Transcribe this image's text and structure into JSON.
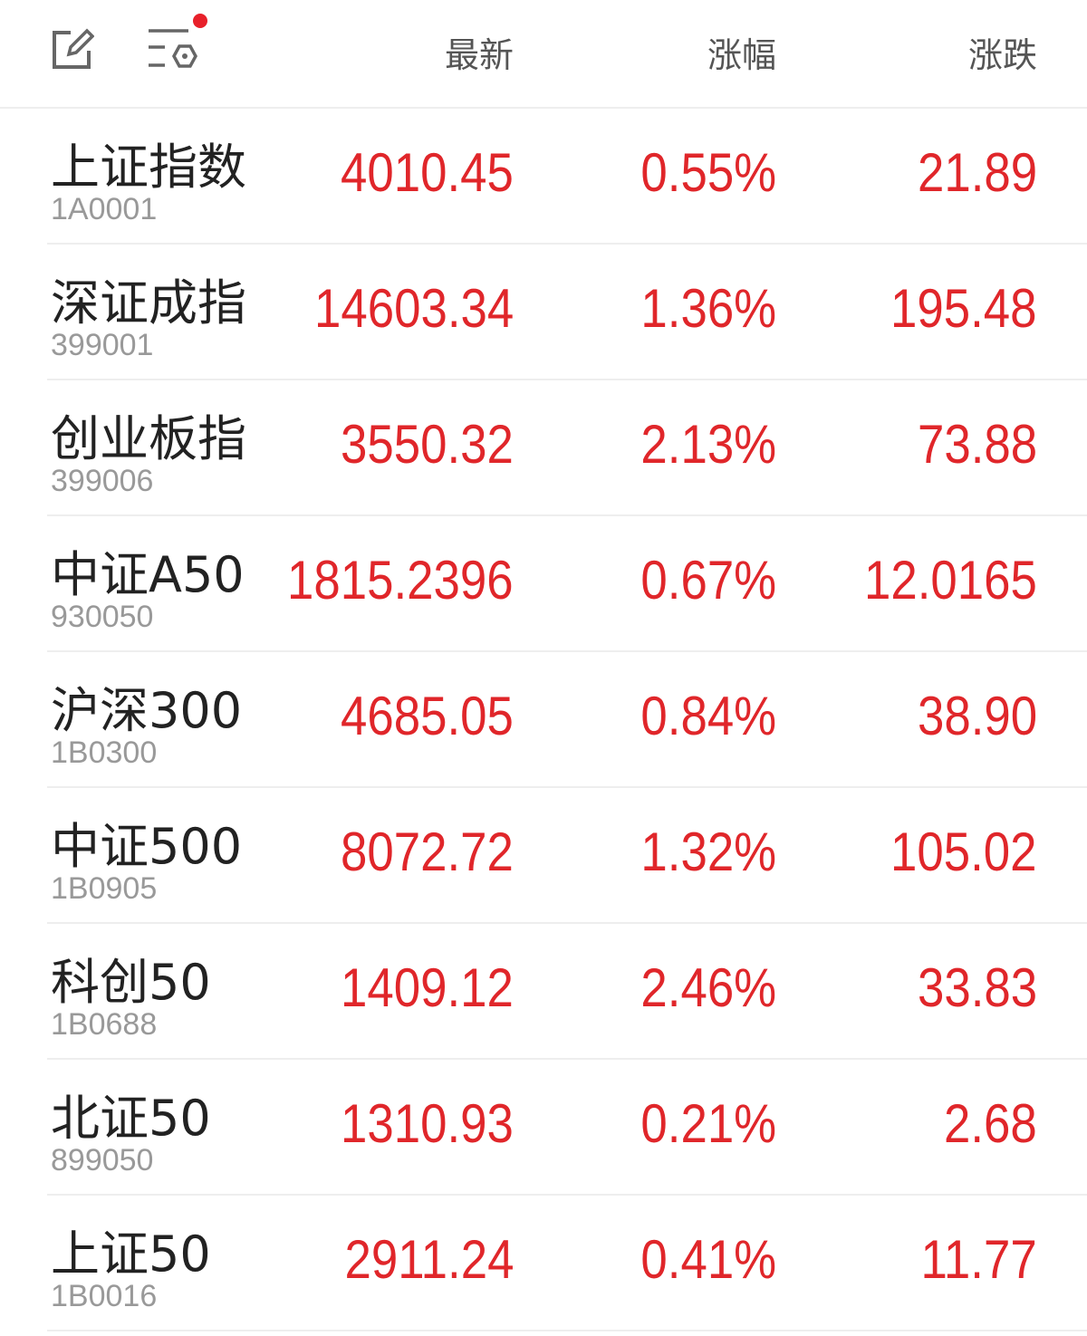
{
  "header": {
    "columns": [
      "最新",
      "涨幅",
      "涨跌"
    ],
    "edit_icon": "edit-icon",
    "settings_icon": "list-settings-icon",
    "notification_dot_color": "#e8202a"
  },
  "colors": {
    "up": "#e0262a"
  },
  "rows": [
    {
      "name": "上证指数",
      "code": "1A0001",
      "latest": "4010.45",
      "change_pct": "0.55%",
      "change": "21.89"
    },
    {
      "name": "深证成指",
      "code": "399001",
      "latest": "14603.34",
      "change_pct": "1.36%",
      "change": "195.48"
    },
    {
      "name": "创业板指",
      "code": "399006",
      "latest": "3550.32",
      "change_pct": "2.13%",
      "change": "73.88"
    },
    {
      "name": "中证A50",
      "code": "930050",
      "latest": "1815.2396",
      "change_pct": "0.67%",
      "change": "12.0165"
    },
    {
      "name": "沪深300",
      "code": "1B0300",
      "latest": "4685.05",
      "change_pct": "0.84%",
      "change": "38.90"
    },
    {
      "name": "中证500",
      "code": "1B0905",
      "latest": "8072.72",
      "change_pct": "1.32%",
      "change": "105.02"
    },
    {
      "name": "科创50",
      "code": "1B0688",
      "latest": "1409.12",
      "change_pct": "2.46%",
      "change": "33.83"
    },
    {
      "name": "北证50",
      "code": "899050",
      "latest": "1310.93",
      "change_pct": "0.21%",
      "change": "2.68"
    },
    {
      "name": "上证50",
      "code": "1B0016",
      "latest": "2911.24",
      "change_pct": "0.41%",
      "change": "11.77"
    }
  ]
}
